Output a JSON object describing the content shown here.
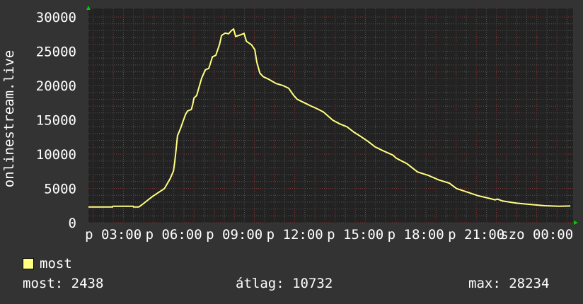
{
  "chart_data": {
    "type": "line",
    "title": "",
    "ylabel": "onlinestream.live",
    "xlabel": "",
    "ylim": [
      0,
      30000
    ],
    "yticks": [
      "0",
      "5000",
      "10000",
      "15000",
      "20000",
      "25000",
      "30000"
    ],
    "xticks": [
      {
        "label": "p 03:00",
        "time": "p 03:00"
      },
      {
        "label": "p 06:00",
        "time": "p 06:00"
      },
      {
        "label": "p 09:00",
        "time": "p 09:00"
      },
      {
        "label": "p 12:00",
        "time": "p 12:00"
      },
      {
        "label": "p 15:00",
        "time": "p 15:00"
      },
      {
        "label": "p 18:00",
        "time": "p 18:00"
      },
      {
        "label": "p 21:00",
        "time": "p 21:00"
      },
      {
        "label": "szo 00:00",
        "time": "szo 00:00"
      }
    ],
    "xlim": [
      "p 01:46",
      "szo 01:48"
    ],
    "grid": true,
    "legend_position": "bottom-left",
    "series": [
      {
        "name": "most",
        "color": "#ffff80",
        "points": [
          [
            "p 01:46",
            2300
          ],
          [
            "p 02:58",
            2300
          ],
          [
            "p 02:59",
            2400
          ],
          [
            "p 03:59",
            2400
          ],
          [
            "p 04:00",
            2300
          ],
          [
            "p 04:16",
            2300
          ],
          [
            "p 04:24",
            2580
          ],
          [
            "p 04:56",
            3800
          ],
          [
            "p 05:32",
            4980
          ],
          [
            "p 05:49",
            6400
          ],
          [
            "p 05:59",
            7550
          ],
          [
            "p 06:03",
            8970
          ],
          [
            "p 06:07",
            10800
          ],
          [
            "p 06:11",
            12700
          ],
          [
            "p 06:20",
            13750
          ],
          [
            "p 06:26",
            14600
          ],
          [
            "p 06:35",
            15800
          ],
          [
            "p 06:41",
            16300
          ],
          [
            "p 06:52",
            16500
          ],
          [
            "p 06:56",
            17200
          ],
          [
            "p 07:00",
            18200
          ],
          [
            "p 07:08",
            18550
          ],
          [
            "p 07:13",
            19400
          ],
          [
            "p 07:23",
            21100
          ],
          [
            "p 07:34",
            22300
          ],
          [
            "p 07:44",
            22500
          ],
          [
            "p 07:55",
            24200
          ],
          [
            "p 08:05",
            24400
          ],
          [
            "p 08:16",
            26000
          ],
          [
            "p 08:22",
            27300
          ],
          [
            "p 08:33",
            27650
          ],
          [
            "p 08:43",
            27550
          ],
          [
            "p 08:52",
            28040
          ],
          [
            "p 08:58",
            28234
          ],
          [
            "p 09:04",
            27150
          ],
          [
            "p 09:19",
            27400
          ],
          [
            "p 09:29",
            27600
          ],
          [
            "p 09:36",
            26450
          ],
          [
            "p 09:51",
            25950
          ],
          [
            "p 10:01",
            25250
          ],
          [
            "p 10:07",
            23400
          ],
          [
            "p 10:16",
            21800
          ],
          [
            "p 10:26",
            21300
          ],
          [
            "p 10:43",
            20900
          ],
          [
            "p 11:04",
            20300
          ],
          [
            "p 11:25",
            20000
          ],
          [
            "p 11:42",
            19600
          ],
          [
            "p 11:57",
            18550
          ],
          [
            "p 12:07",
            18000
          ],
          [
            "p 12:28",
            17500
          ],
          [
            "p 12:49",
            17000
          ],
          [
            "p 13:11",
            16500
          ],
          [
            "p 13:25",
            16150
          ],
          [
            "p 13:53",
            14950
          ],
          [
            "p 14:14",
            14400
          ],
          [
            "p 14:35",
            14000
          ],
          [
            "p 14:56",
            13200
          ],
          [
            "p 15:17",
            12550
          ],
          [
            "p 15:38",
            11850
          ],
          [
            "p 15:59",
            11050
          ],
          [
            "p 16:20",
            10550
          ],
          [
            "p 16:52",
            9850
          ],
          [
            "p 17:02",
            9400
          ],
          [
            "p 17:34",
            8600
          ],
          [
            "p 18:05",
            7400
          ],
          [
            "p 18:37",
            6900
          ],
          [
            "p 19:08",
            6250
          ],
          [
            "p 19:40",
            5750
          ],
          [
            "p 20:01",
            4980
          ],
          [
            "p 20:33",
            4460
          ],
          [
            "p 21:04",
            3950
          ],
          [
            "p 21:35",
            3600
          ],
          [
            "p 21:56",
            3330
          ],
          [
            "p 22:03",
            3440
          ],
          [
            "p 22:18",
            3160
          ],
          [
            "p 23:00",
            2850
          ],
          [
            "p 23:42",
            2650
          ],
          [
            "szo 00:24",
            2470
          ],
          [
            "szo 01:06",
            2400
          ],
          [
            "szo 01:40",
            2438
          ]
        ]
      }
    ]
  },
  "legend": {
    "label": "most",
    "color": "#ffff80"
  },
  "stats": {
    "current": "most: 2438",
    "average": "átlag: 10732",
    "max": "max: 28234"
  },
  "colors": {
    "background": "#333333",
    "plot": "#222222",
    "grid_minor": "#555555",
    "grid_major": "#7a3a3a",
    "arrow": "#00cc00"
  }
}
